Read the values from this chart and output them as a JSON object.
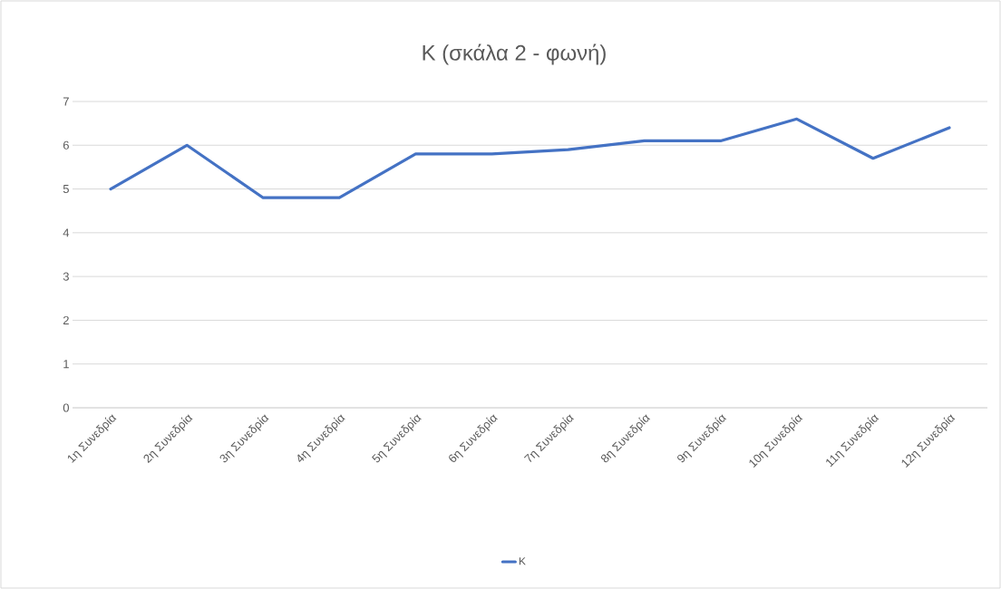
{
  "chart_data": {
    "type": "line",
    "title": "Κ (σκάλα 2 - φωνή)",
    "categories": [
      "1η Συνεδρία",
      "2η Συνεδρία",
      "3η Συνεδρία",
      "4η Συνεδρία",
      "5η Συνεδρία",
      "6η Συνεδρία",
      "7η Συνεδρία",
      "8η Συνεδρία",
      "9η Συνεδρία",
      "10η Συνεδρία",
      "11η Συνεδρία",
      "12η Συνεδρία"
    ],
    "series": [
      {
        "name": "Κ",
        "color": "#4472c4",
        "values": [
          5,
          6,
          4.8,
          4.8,
          5.8,
          5.8,
          5.9,
          6.1,
          6.1,
          6.6,
          5.7,
          6.4
        ]
      }
    ],
    "ylim": [
      0,
      7
    ],
    "yticks": [
      0,
      1,
      2,
      3,
      4,
      5,
      6,
      7
    ],
    "grid": "y",
    "legend": "bottom"
  }
}
